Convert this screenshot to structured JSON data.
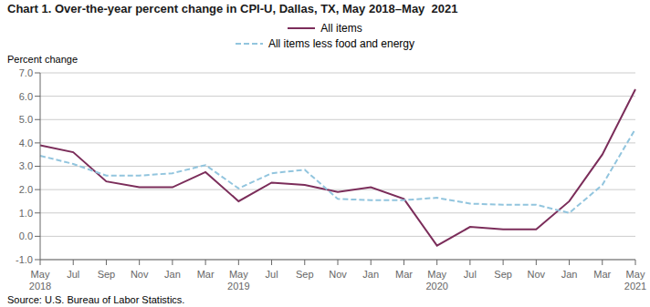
{
  "chart_data": {
    "type": "line",
    "title": "Chart 1. Over-the-year percent change in CPI-U, Dallas, TX, May 2018–May  2021",
    "ylabel": "Percent change",
    "source": "Source: U.S. Bureau of Labor Statistics.",
    "categories": [
      "May\n2018",
      "Jul",
      "Sep",
      "Nov",
      "Jan",
      "Mar",
      "May\n2019",
      "Jul",
      "Sep",
      "Nov",
      "Jan",
      "Mar",
      "May\n2020",
      "Jul",
      "Sep",
      "Nov",
      "Jan",
      "Mar",
      "May\n2021"
    ],
    "series": [
      {
        "name": "All items",
        "color": "#7B2D5A",
        "line_style": "solid",
        "values": [
          3.9,
          3.6,
          2.35,
          2.1,
          2.1,
          2.75,
          1.5,
          2.3,
          2.2,
          1.9,
          2.1,
          1.6,
          -0.4,
          0.4,
          0.3,
          0.3,
          1.5,
          3.5,
          6.3
        ]
      },
      {
        "name": "All items less food and energy",
        "color": "#92C5DE",
        "line_style": "dashed",
        "values": [
          3.45,
          3.1,
          2.6,
          2.6,
          2.7,
          3.05,
          2.05,
          2.7,
          2.85,
          1.6,
          1.55,
          1.55,
          1.65,
          1.4,
          1.35,
          1.35,
          1.0,
          2.2,
          4.6
        ]
      }
    ],
    "ylim": [
      -1.0,
      7.0
    ],
    "yticks": [
      {
        "value": -1.0,
        "label": "-1.0"
      },
      {
        "value": 0.0,
        "label": "0.0"
      },
      {
        "value": 1.0,
        "label": "1.0"
      },
      {
        "value": 2.0,
        "label": "2.0"
      },
      {
        "value": 3.0,
        "label": "3.0"
      },
      {
        "value": 4.0,
        "label": "4.0"
      },
      {
        "value": 5.0,
        "label": "5.0"
      },
      {
        "value": 6.0,
        "label": "6.0"
      },
      {
        "value": 7.0,
        "label": "7.0"
      }
    ],
    "grid": true,
    "legend": "top"
  }
}
